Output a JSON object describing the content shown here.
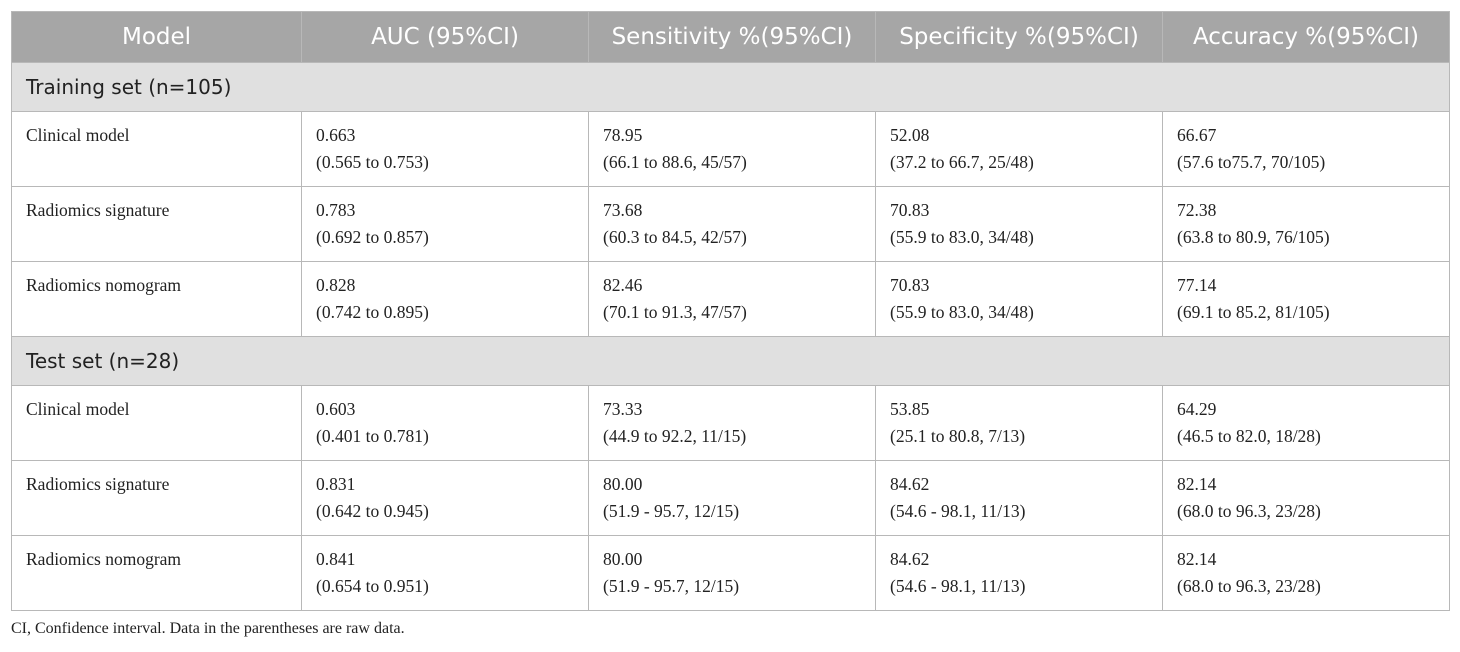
{
  "table": {
    "headers": [
      "Model",
      "AUC (95%CI)",
      "Sensitivity %(95%CI)",
      "Specificity %(95%CI)",
      "Accuracy %(95%CI)"
    ],
    "sections": [
      {
        "title": "Training set (n=105)",
        "rows": [
          {
            "model": "Clinical model",
            "auc": [
              "0.663",
              "(0.565 to 0.753)"
            ],
            "sensitivity": [
              "78.95",
              "(66.1 to 88.6, 45/57)"
            ],
            "specificity": [
              "52.08",
              "(37.2 to 66.7, 25/48)"
            ],
            "accuracy": [
              "66.67",
              "(57.6 to75.7, 70/105)"
            ]
          },
          {
            "model": "Radiomics signature",
            "auc": [
              "0.783",
              "(0.692 to 0.857)"
            ],
            "sensitivity": [
              "73.68",
              "(60.3 to 84.5, 42/57)"
            ],
            "specificity": [
              "70.83",
              "(55.9 to 83.0, 34/48)"
            ],
            "accuracy": [
              "72.38",
              "(63.8 to 80.9, 76/105)"
            ]
          },
          {
            "model": "Radiomics nomogram",
            "auc": [
              "0.828",
              "(0.742 to 0.895)"
            ],
            "sensitivity": [
              "82.46",
              "(70.1 to 91.3, 47/57)"
            ],
            "specificity": [
              "70.83",
              "(55.9 to 83.0, 34/48)"
            ],
            "accuracy": [
              "77.14",
              "(69.1 to 85.2, 81/105)"
            ]
          }
        ]
      },
      {
        "title": "Test set (n=28)",
        "rows": [
          {
            "model": "Clinical model",
            "auc": [
              "0.603",
              "(0.401 to 0.781)"
            ],
            "sensitivity": [
              "73.33",
              "(44.9 to 92.2, 11/15)"
            ],
            "specificity": [
              "53.85",
              "(25.1 to 80.8, 7/13)"
            ],
            "accuracy": [
              "64.29",
              "(46.5 to 82.0, 18/28)"
            ]
          },
          {
            "model": "Radiomics signature",
            "auc": [
              "0.831",
              "(0.642 to 0.945)"
            ],
            "sensitivity": [
              "80.00",
              "(51.9 - 95.7, 12/15)"
            ],
            "specificity": [
              "84.62",
              "(54.6 - 98.1, 11/13)"
            ],
            "accuracy": [
              "82.14",
              "(68.0 to 96.3, 23/28)"
            ]
          },
          {
            "model": "Radiomics nomogram",
            "auc": [
              "0.841",
              "(0.654 to 0.951)"
            ],
            "sensitivity": [
              "80.00",
              "(51.9 - 95.7, 12/15)"
            ],
            "specificity": [
              "84.62",
              "(54.6 - 98.1, 11/13)"
            ],
            "accuracy": [
              "82.14",
              "(68.0 to 96.3, 23/28)"
            ]
          }
        ]
      }
    ]
  },
  "footnote": "CI, Confidence interval. Data in the parentheses are raw data."
}
